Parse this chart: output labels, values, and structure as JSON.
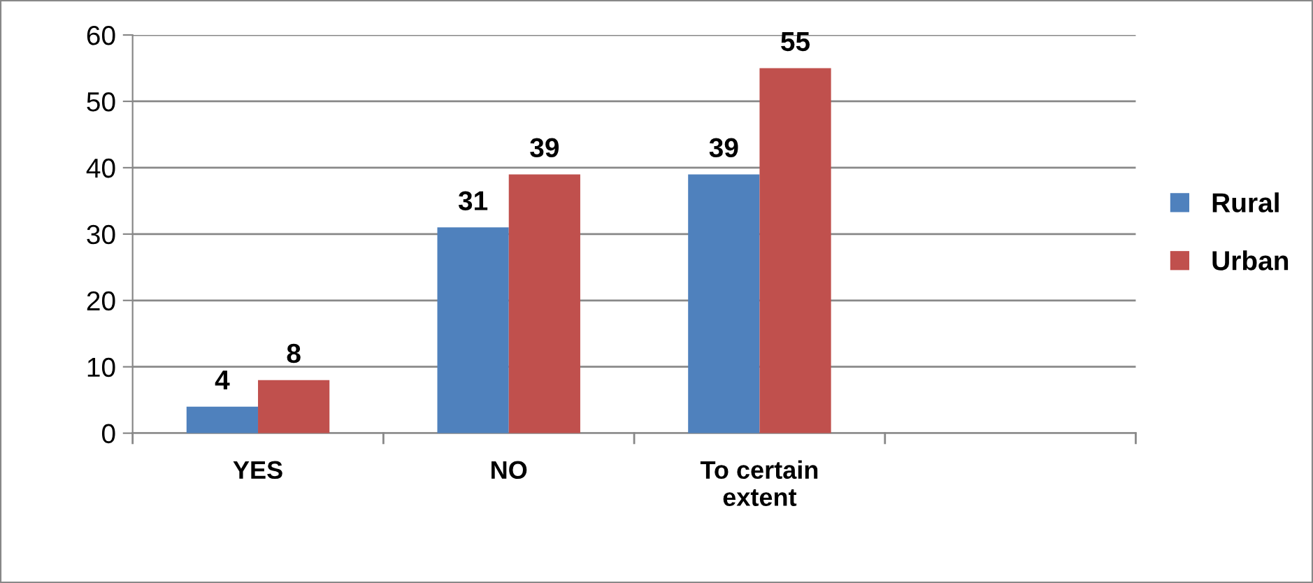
{
  "chart_data": {
    "type": "bar",
    "categories": [
      "YES",
      "NO",
      "To certain extent",
      null
    ],
    "series": [
      {
        "name": "Rural",
        "color": "#4f81bd",
        "values": [
          4,
          31,
          39,
          null
        ]
      },
      {
        "name": "Urban",
        "color": "#c0504d",
        "values": [
          8,
          39,
          55,
          null
        ]
      }
    ],
    "ylim": [
      0,
      60
    ],
    "yticks": [
      0,
      10,
      20,
      30,
      40,
      50,
      60
    ],
    "grid": "y",
    "legend": "right",
    "data_labels": true
  }
}
